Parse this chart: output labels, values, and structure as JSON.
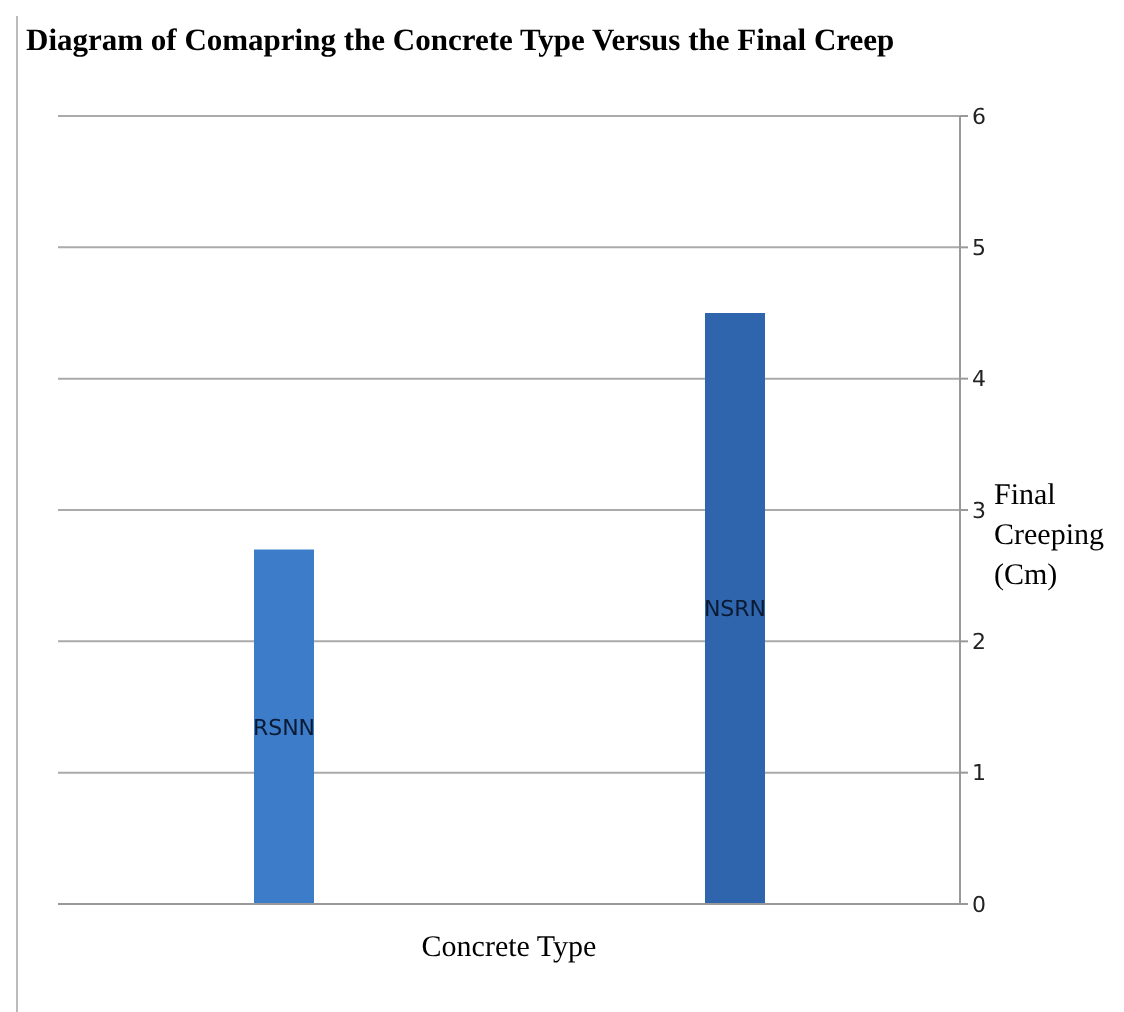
{
  "chart_data": {
    "type": "bar",
    "title": "Diagram of Comapring the Concrete Type Versus the Final Creep",
    "xlabel": "Concrete Type",
    "ylabel": "Final Creeping (Cm)",
    "categories": [
      "RSNN",
      "NSRN"
    ],
    "values": [
      2.7,
      4.5
    ],
    "colors": [
      "#3d7cc9",
      "#2f65ad"
    ],
    "ylim": [
      0,
      6
    ],
    "yticks": [
      0,
      1,
      2,
      3,
      4,
      5,
      6
    ],
    "grid": "y",
    "tick_labels": "y"
  }
}
